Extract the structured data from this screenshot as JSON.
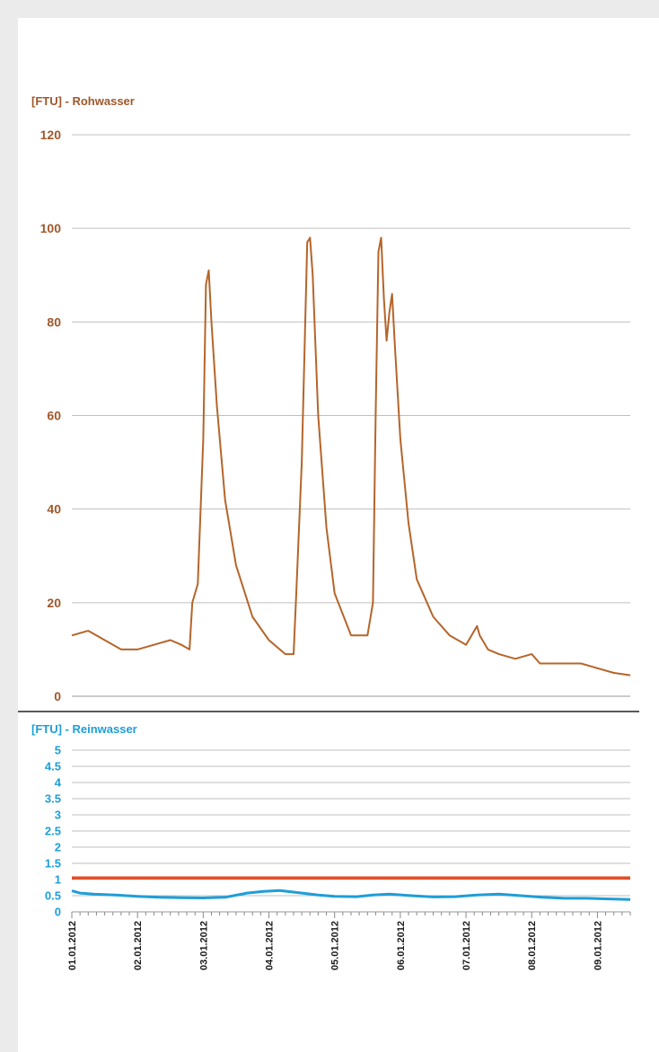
{
  "colors": {
    "background": "#ebebeb",
    "panel": "#ffffff",
    "raw": "#b5652a",
    "clean": "#1e9ed8",
    "limit": "#e0502a",
    "grid": "#bfbfbf",
    "axis_text_top": "#a0572a",
    "axis_text_bottom": "#1e9ed8"
  },
  "chart_data": [
    {
      "type": "line",
      "title": "[FTU] - Rohwasser",
      "ylim": [
        0,
        120
      ],
      "yticks": [
        0,
        20,
        40,
        60,
        80,
        100,
        120
      ],
      "xlim": [
        "2012-01-01",
        "2012-01-09T12:00"
      ],
      "grid": true,
      "series": [
        {
          "x": [
            "2012-01-01T00:00",
            "2012-01-01T06:00",
            "2012-01-01T12:00",
            "2012-01-01T18:00",
            "2012-01-02T00:00",
            "2012-01-02T06:00",
            "2012-01-02T12:00",
            "2012-01-02T16:00",
            "2012-01-02T19:00",
            "2012-01-02T20:00",
            "2012-01-02T22:00",
            "2012-01-03T00:00",
            "2012-01-03T01:00",
            "2012-01-03T02:00",
            "2012-01-03T03:00",
            "2012-01-03T05:00",
            "2012-01-03T08:00",
            "2012-01-03T12:00",
            "2012-01-03T18:00",
            "2012-01-04T00:00",
            "2012-01-04T06:00",
            "2012-01-04T09:00",
            "2012-01-04T10:00",
            "2012-01-04T12:00",
            "2012-01-04T14:00",
            "2012-01-04T15:00",
            "2012-01-04T16:00",
            "2012-01-04T18:00",
            "2012-01-04T21:00",
            "2012-01-05T00:00",
            "2012-01-05T06:00",
            "2012-01-05T12:00",
            "2012-01-05T14:00",
            "2012-01-05T15:00",
            "2012-01-05T16:00",
            "2012-01-05T17:00",
            "2012-01-05T18:00",
            "2012-01-05T19:00",
            "2012-01-05T20:00",
            "2012-01-05T21:00",
            "2012-01-05T22:00",
            "2012-01-06T00:00",
            "2012-01-06T03:00",
            "2012-01-06T06:00",
            "2012-01-06T12:00",
            "2012-01-06T18:00",
            "2012-01-07T00:00",
            "2012-01-07T04:00",
            "2012-01-07T05:00",
            "2012-01-07T08:00",
            "2012-01-07T12:00",
            "2012-01-07T18:00",
            "2012-01-08T00:00",
            "2012-01-08T03:00",
            "2012-01-08T06:00",
            "2012-01-08T12:00",
            "2012-01-08T18:00",
            "2012-01-09T00:00",
            "2012-01-09T06:00",
            "2012-01-09T12:00"
          ],
          "y": [
            13,
            14,
            12,
            10,
            10,
            11,
            12,
            11,
            10,
            20,
            24,
            55,
            88,
            91,
            80,
            62,
            42,
            28,
            17,
            12,
            9,
            9,
            22,
            50,
            97,
            98,
            90,
            60,
            36,
            22,
            13,
            13,
            20,
            60,
            95,
            98,
            85,
            76,
            82,
            86,
            75,
            55,
            37,
            25,
            17,
            13,
            11,
            15,
            13,
            10,
            9,
            8,
            9,
            7,
            7,
            7,
            7,
            6,
            5,
            4.5
          ]
        }
      ]
    },
    {
      "type": "line",
      "title": "[FTU] - Reinwasser",
      "ylim": [
        0,
        5
      ],
      "yticks": [
        "0",
        "0.5",
        "1",
        "1.5",
        "2",
        "2.5",
        "3",
        "3.5",
        "4",
        "4.5",
        "5"
      ],
      "xlim": [
        "2012-01-01",
        "2012-01-09T12:00"
      ],
      "xtick_labels": [
        "01.01.2012",
        "02.01.2012",
        "03.01.2012",
        "04.01.2012",
        "05.01.2012",
        "06.01.2012",
        "07.01.2012",
        "08.01.2012",
        "09.01.2012"
      ],
      "grid": true,
      "limit_line": 1.05,
      "series": [
        {
          "x": [
            "2012-01-01T00:00",
            "2012-01-01T03:00",
            "2012-01-01T08:00",
            "2012-01-01T16:00",
            "2012-01-02T00:00",
            "2012-01-02T08:00",
            "2012-01-02T16:00",
            "2012-01-03T00:00",
            "2012-01-03T08:00",
            "2012-01-03T16:00",
            "2012-01-03T22:00",
            "2012-01-04T04:00",
            "2012-01-04T10:00",
            "2012-01-04T18:00",
            "2012-01-05T00:00",
            "2012-01-05T08:00",
            "2012-01-05T14:00",
            "2012-01-05T20:00",
            "2012-01-06T04:00",
            "2012-01-06T12:00",
            "2012-01-06T20:00",
            "2012-01-07T04:00",
            "2012-01-07T12:00",
            "2012-01-07T20:00",
            "2012-01-08T04:00",
            "2012-01-08T12:00",
            "2012-01-08T20:00",
            "2012-01-09T04:00",
            "2012-01-09T12:00"
          ],
          "y": [
            0.65,
            0.58,
            0.55,
            0.52,
            0.48,
            0.45,
            0.44,
            0.43,
            0.45,
            0.58,
            0.63,
            0.66,
            0.6,
            0.52,
            0.48,
            0.47,
            0.52,
            0.55,
            0.5,
            0.46,
            0.47,
            0.52,
            0.55,
            0.5,
            0.45,
            0.42,
            0.42,
            0.4,
            0.38
          ]
        }
      ]
    }
  ]
}
